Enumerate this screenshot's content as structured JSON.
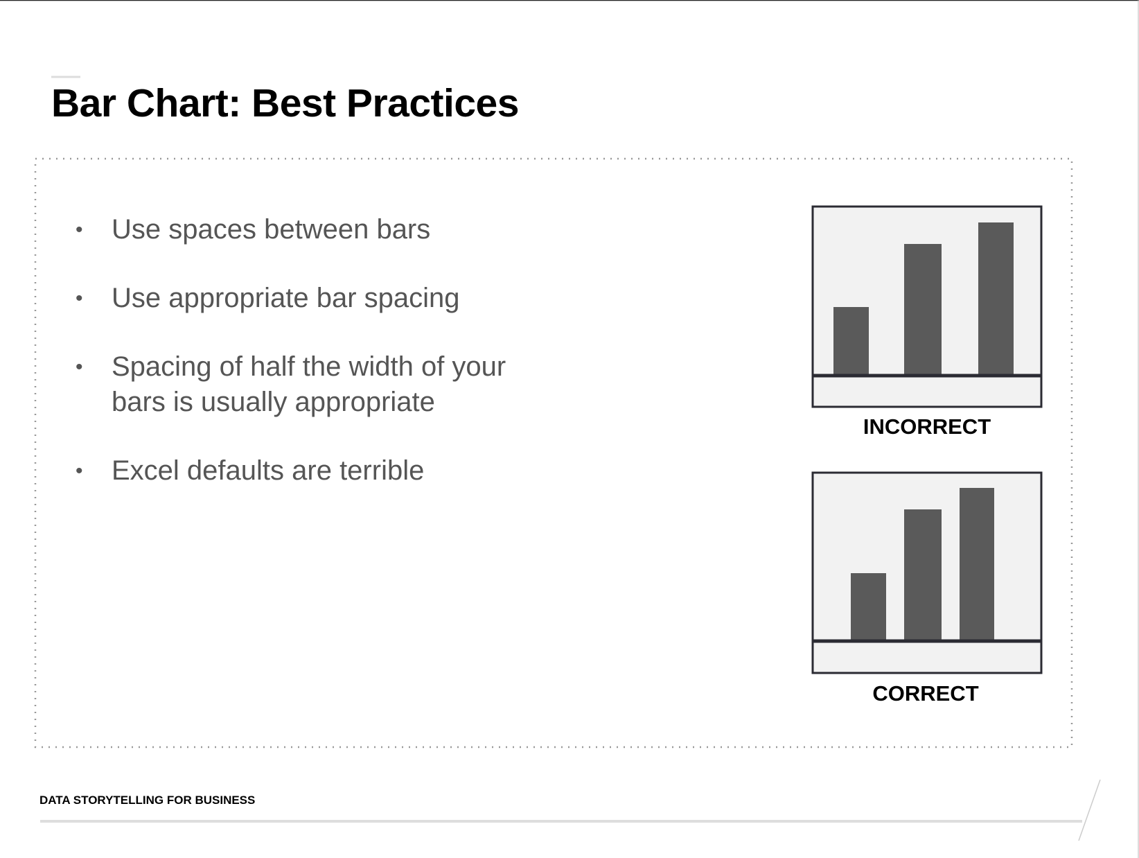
{
  "header": {
    "title": "Bar Chart: Best Practices"
  },
  "bullets": [
    "Use spaces between bars",
    "Use appropriate bar spacing",
    "Spacing of half the width of your bars is usually appropriate",
    "Excel defaults are terrible"
  ],
  "figures": [
    {
      "label": "INCORRECT"
    },
    {
      "label": "CORRECT"
    }
  ],
  "footer": {
    "text": "DATA STORYTELLING FOR BUSINESS"
  }
}
